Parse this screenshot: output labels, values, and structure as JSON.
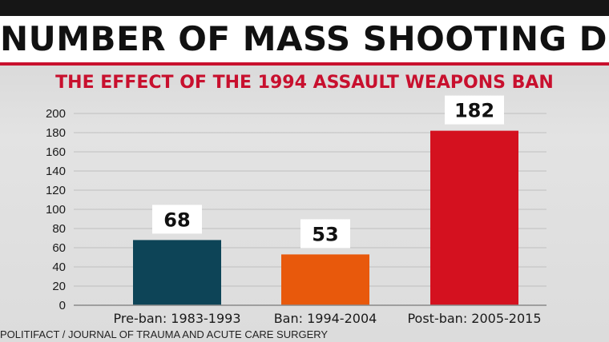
{
  "header": {
    "title": "NUMBER OF MASS SHOOTING DEATH",
    "subtitle": "THE EFFECT OF THE 1994 ASSAULT WEAPONS BAN"
  },
  "footer": {
    "source": "POLITIFACT / JOURNAL OF TRAUMA AND ACUTE CARE SURGERY"
  },
  "colors": {
    "accent": "#c8102e",
    "bar_pre": "#0d4457",
    "bar_ban": "#e8590c",
    "bar_post": "#d4111f"
  },
  "chart_data": {
    "type": "bar",
    "title": "",
    "xlabel": "",
    "ylabel": "",
    "categories": [
      "Pre-ban: 1983-1993",
      "Ban: 1994-2004",
      "Post-ban: 2005-2015"
    ],
    "values": [
      68,
      53,
      182
    ],
    "data_labels": [
      "68",
      "53",
      "182"
    ],
    "bar_colors": [
      "#0d4457",
      "#e8590c",
      "#d4111f"
    ],
    "ylim": [
      0,
      200
    ],
    "yticks": [
      0,
      20,
      40,
      60,
      80,
      100,
      120,
      140,
      160,
      180,
      200
    ],
    "grid": true,
    "legend": "none"
  }
}
